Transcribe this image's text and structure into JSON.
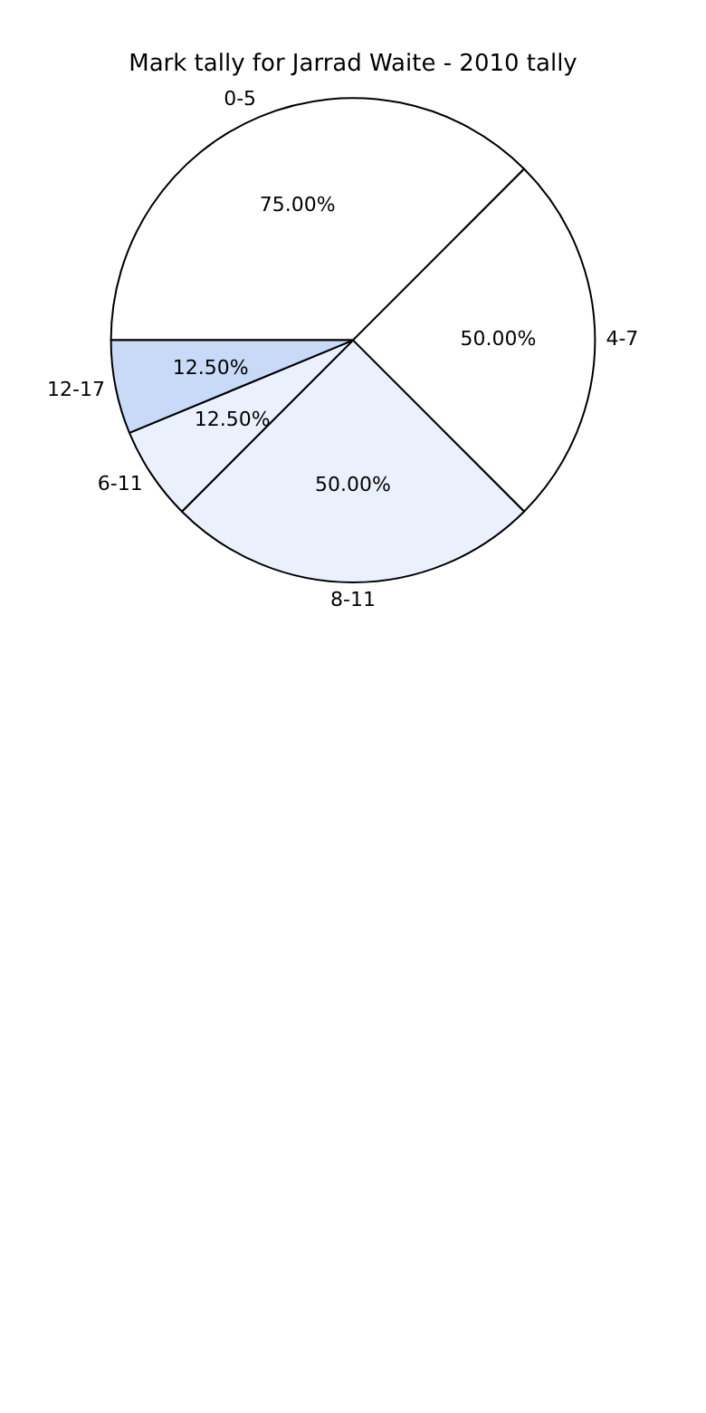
{
  "chart_data": {
    "type": "pie",
    "title": "Mark tally for Jarrad Waite - 2010 tally",
    "categories": [
      "0-5",
      "4-7",
      "8-11",
      "6-11",
      "12-17"
    ],
    "values": [
      75,
      50,
      50,
      12.5,
      12.5
    ],
    "colors": [
      "#ffffff",
      "#ffffff",
      "#eaf0fc",
      "#eaf0fc",
      "#c8daf8"
    ],
    "value_labels": [
      "75.00%",
      "50.00%",
      "50.00%",
      "12.50%",
      "12.50%"
    ],
    "legend": false
  }
}
